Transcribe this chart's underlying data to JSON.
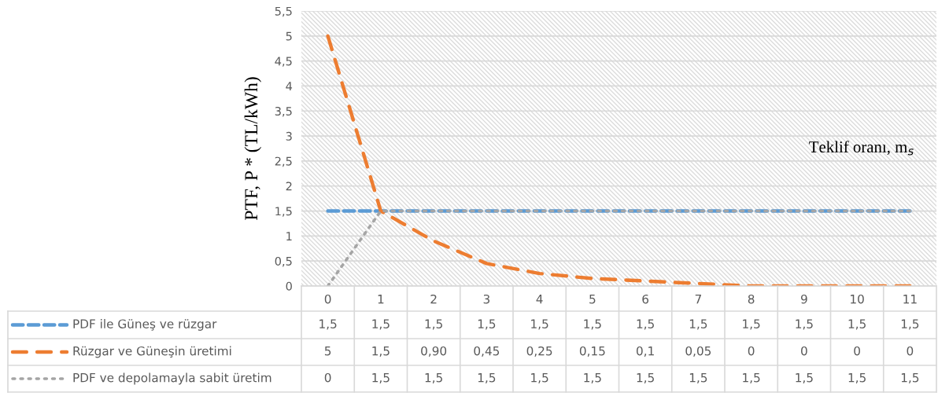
{
  "chart_data": {
    "type": "line",
    "xlabel": "Teklif oranı, m$_{s}$",
    "ylabel": "PTF, P * (TL/kWh)",
    "categories": [
      "0",
      "1",
      "2",
      "3",
      "4",
      "5",
      "6",
      "7",
      "8",
      "9",
      "10",
      "11"
    ],
    "series": [
      {
        "name": "PDF ile Güneş ve rüzgar",
        "color": "#5b9bd5",
        "line_style": "dashed",
        "values": [
          1.5,
          1.5,
          1.5,
          1.5,
          1.5,
          1.5,
          1.5,
          1.5,
          1.5,
          1.5,
          1.5,
          1.5
        ],
        "value_labels": [
          "1,5",
          "1,5",
          "1,5",
          "1,5",
          "1,5",
          "1,5",
          "1,5",
          "1,5",
          "1,5",
          "1,5",
          "1,5",
          "1,5"
        ]
      },
      {
        "name": "Rüzgar ve Güneşin üretimi",
        "color": "#ed7d31",
        "line_style": "dashed",
        "values": [
          5,
          1.5,
          0.9,
          0.45,
          0.25,
          0.15,
          0.1,
          0.05,
          0,
          0,
          0,
          0
        ],
        "value_labels": [
          "5",
          "1,5",
          "0,90",
          "0,45",
          "0,25",
          "0,15",
          "0,1",
          "0,05",
          "0",
          "0",
          "0",
          "0"
        ]
      },
      {
        "name": "PDF ve depolamayla sabit üretim",
        "color": "#a5a5a5",
        "line_style": "dotted",
        "values": [
          0,
          1.5,
          1.5,
          1.5,
          1.5,
          1.5,
          1.5,
          1.5,
          1.5,
          1.5,
          1.5,
          1.5
        ],
        "value_labels": [
          "0",
          "1,5",
          "1,5",
          "1,5",
          "1,5",
          "1,5",
          "1,5",
          "1,5",
          "1,5",
          "1,5",
          "1,5",
          "1,5"
        ]
      }
    ],
    "ylim": [
      0,
      5.5
    ],
    "yticks": [
      0,
      {
        "value": 0.5,
        "label": "0,5"
      },
      1,
      {
        "value": 1.5,
        "label": "1,5"
      },
      2,
      {
        "value": 2.5,
        "label": "2,5"
      },
      3,
      {
        "value": 3.5,
        "label": "3,5"
      },
      4,
      {
        "value": 4.5,
        "label": "4,5"
      },
      5,
      {
        "value": 5.5,
        "label": "5,5"
      }
    ],
    "grid": "y",
    "legend": "bottom",
    "marker": "none"
  }
}
